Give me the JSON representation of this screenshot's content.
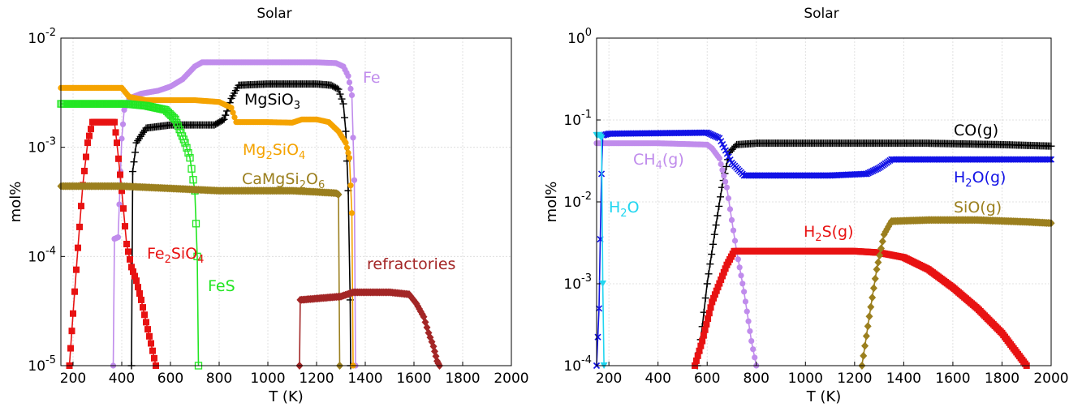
{
  "chart_data": [
    {
      "type": "scatter",
      "title": "Solar",
      "xlabel": "T (K)",
      "ylabel": "mol%",
      "xlim": [
        150,
        2000
      ],
      "ylim": [
        1e-05,
        0.01
      ],
      "log_y": true,
      "grid": true,
      "xticks": [
        "200",
        "400",
        "600",
        "800",
        "1000",
        "1200",
        "1400",
        "1600",
        "1800",
        "2000"
      ],
      "yticks": [
        {
          "base": "10",
          "exp": "-2"
        },
        {
          "base": "10",
          "exp": "-3"
        },
        {
          "base": "10",
          "exp": "-4"
        },
        {
          "base": "10",
          "exp": "-5"
        }
      ],
      "series": [
        {
          "name": "Fe",
          "label": {
            "parts": [
              [
                "Fe",
                ""
              ]
            ]
          },
          "color": "#c08cec",
          "marker": "circle",
          "points": [
            [
              365,
              1e-05
            ],
            [
              370,
              0.000145
            ],
            [
              385,
              0.00015
            ],
            [
              400,
              0.0012
            ],
            [
              410,
              0.0022
            ],
            [
              430,
              0.0028
            ],
            [
              480,
              0.0031
            ],
            [
              550,
              0.0033
            ],
            [
              600,
              0.0036
            ],
            [
              650,
              0.0042
            ],
            [
              700,
              0.0055
            ],
            [
              730,
              0.006
            ],
            [
              800,
              0.006
            ],
            [
              1000,
              0.006
            ],
            [
              1200,
              0.006
            ],
            [
              1280,
              0.0059
            ],
            [
              1310,
              0.0055
            ],
            [
              1330,
              0.0045
            ],
            [
              1345,
              0.003
            ],
            [
              1355,
              0.0005
            ],
            [
              1360,
              1e-05
            ]
          ]
        },
        {
          "name": "MgSiO3",
          "label": {
            "parts": [
              [
                "MgSiO",
                ""
              ],
              [
                "3",
                "sub"
              ]
            ]
          },
          "color": "#000000",
          "marker": "plus",
          "points": [
            [
              440,
              1e-05
            ],
            [
              445,
              0.0006
            ],
            [
              460,
              0.0011
            ],
            [
              500,
              0.0015
            ],
            [
              600,
              0.0016
            ],
            [
              700,
              0.0016
            ],
            [
              780,
              0.0016
            ],
            [
              820,
              0.0018
            ],
            [
              850,
              0.0028
            ],
            [
              880,
              0.0037
            ],
            [
              1000,
              0.0038
            ],
            [
              1100,
              0.0038
            ],
            [
              1200,
              0.0038
            ],
            [
              1260,
              0.0037
            ],
            [
              1290,
              0.0034
            ],
            [
              1310,
              0.0025
            ],
            [
              1320,
              0.0014
            ],
            [
              1330,
              0.0004
            ],
            [
              1338,
              4e-05
            ],
            [
              1340,
              1e-05
            ]
          ]
        },
        {
          "name": "Mg2SiO4",
          "label": {
            "parts": [
              [
                "Mg",
                ""
              ],
              [
                "2",
                "sub"
              ],
              [
                "SiO",
                ""
              ],
              [
                "4",
                "sub"
              ]
            ]
          },
          "color": "#f5a300",
          "marker": "circle",
          "points": [
            [
              150,
              0.0035
            ],
            [
              300,
              0.0035
            ],
            [
              400,
              0.0035
            ],
            [
              430,
              0.0029
            ],
            [
              500,
              0.0027
            ],
            [
              600,
              0.0027
            ],
            [
              700,
              0.0027
            ],
            [
              800,
              0.0026
            ],
            [
              850,
              0.0023
            ],
            [
              870,
              0.0017
            ],
            [
              900,
              0.0017
            ],
            [
              1000,
              0.0017
            ],
            [
              1100,
              0.00168
            ],
            [
              1140,
              0.0018
            ],
            [
              1200,
              0.0018
            ],
            [
              1250,
              0.0017
            ],
            [
              1290,
              0.0014
            ],
            [
              1320,
              0.0011
            ],
            [
              1335,
              0.0008
            ],
            [
              1345,
              0.00025
            ],
            [
              1350,
              1e-05
            ]
          ]
        },
        {
          "name": "FeS",
          "label": {
            "parts": [
              [
                "FeS",
                ""
              ]
            ]
          },
          "color": "#22e622",
          "marker": "square-open",
          "points": [
            [
              150,
              0.0025
            ],
            [
              300,
              0.0025
            ],
            [
              420,
              0.0025
            ],
            [
              500,
              0.0024
            ],
            [
              580,
              0.0022
            ],
            [
              620,
              0.0018
            ],
            [
              660,
              0.0011
            ],
            [
              680,
              0.0008
            ],
            [
              700,
              0.0004
            ],
            [
              705,
              0.0002
            ],
            [
              710,
              0.0001
            ],
            [
              715,
              1e-05
            ]
          ]
        },
        {
          "name": "Fe2SiO4",
          "label": {
            "parts": [
              [
                "Fe",
                ""
              ],
              [
                "2",
                "sub"
              ],
              [
                "SiO",
                ""
              ],
              [
                "4",
                "sub"
              ]
            ]
          },
          "color": "#e81212",
          "marker": "square",
          "points": [
            [
              185,
              1e-05
            ],
            [
              200,
              3e-05
            ],
            [
              220,
              0.00012
            ],
            [
              240,
              0.00045
            ],
            [
              260,
              0.0011
            ],
            [
              280,
              0.0017
            ],
            [
              350,
              0.0017
            ],
            [
              370,
              0.0017
            ],
            [
              380,
              0.0011
            ],
            [
              400,
              0.0004
            ],
            [
              420,
              0.00013
            ],
            [
              440,
              8e-05
            ],
            [
              460,
              6e-05
            ],
            [
              480,
              4e-05
            ],
            [
              500,
              2.5e-05
            ],
            [
              520,
              1.6e-05
            ],
            [
              540,
              1e-05
            ]
          ]
        },
        {
          "name": "CaMgSi2O6",
          "label": {
            "parts": [
              [
                "CaMgSi",
                ""
              ],
              [
                "2",
                "sub"
              ],
              [
                "O",
                ""
              ],
              [
                "6",
                "sub"
              ]
            ]
          },
          "color": "#9b7f1e",
          "marker": "diamond",
          "points": [
            [
              150,
              0.00044
            ],
            [
              400,
              0.00044
            ],
            [
              600,
              0.00042
            ],
            [
              800,
              0.0004
            ],
            [
              1000,
              0.0004
            ],
            [
              1100,
              0.0004
            ],
            [
              1200,
              0.00039
            ],
            [
              1280,
              0.00038
            ],
            [
              1290,
              0.00037
            ],
            [
              1295,
              1e-05
            ]
          ]
        },
        {
          "name": "refractories",
          "label": {
            "parts": [
              [
                "refractories",
                ""
              ]
            ]
          },
          "color": "#a32626",
          "marker": "diamond",
          "points": [
            [
              1130,
              1e-05
            ],
            [
              1133,
              4e-05
            ],
            [
              1300,
              4.3e-05
            ],
            [
              1350,
              4.7e-05
            ],
            [
              1500,
              4.7e-05
            ],
            [
              1580,
              4.5e-05
            ],
            [
              1610,
              3.7e-05
            ],
            [
              1640,
              2.8e-05
            ],
            [
              1660,
              2e-05
            ],
            [
              1680,
              1.5e-05
            ],
            [
              1695,
              1.1e-05
            ],
            [
              1705,
              1e-05
            ]
          ]
        }
      ]
    },
    {
      "type": "scatter",
      "title": "Solar",
      "xlabel": "T (K)",
      "ylabel": "mol%",
      "xlim": [
        150,
        2000
      ],
      "ylim": [
        0.0001,
        1
      ],
      "log_y": true,
      "grid": true,
      "xticks": [
        "200",
        "400",
        "600",
        "800",
        "1000",
        "1200",
        "1400",
        "1600",
        "1800",
        "2000"
      ],
      "yticks": [
        {
          "base": "10",
          "exp": "0"
        },
        {
          "base": "10",
          "exp": "-1"
        },
        {
          "base": "10",
          "exp": "-2"
        },
        {
          "base": "10",
          "exp": "-3"
        },
        {
          "base": "10",
          "exp": "-4"
        }
      ],
      "series": [
        {
          "name": "CO(g)",
          "label": {
            "parts": [
              [
                "CO(g)",
                ""
              ]
            ]
          },
          "color": "#000000",
          "marker": "plus",
          "points": [
            [
              560,
              0.0001
            ],
            [
              580,
              0.0003
            ],
            [
              600,
              0.001
            ],
            [
              630,
              0.004
            ],
            [
              660,
              0.015
            ],
            [
              690,
              0.04
            ],
            [
              720,
              0.05
            ],
            [
              800,
              0.052
            ],
            [
              1000,
              0.052
            ],
            [
              1200,
              0.052
            ],
            [
              1500,
              0.052
            ],
            [
              1800,
              0.05
            ],
            [
              2000,
              0.048
            ]
          ]
        },
        {
          "name": "CH4(g)",
          "label": {
            "parts": [
              [
                "CH",
                ""
              ],
              [
                "4",
                "sub"
              ],
              [
                "(g)",
                ""
              ]
            ]
          },
          "color": "#c08cec",
          "marker": "circle",
          "points": [
            [
              150,
              0.052
            ],
            [
              200,
              0.052
            ],
            [
              400,
              0.052
            ],
            [
              600,
              0.05
            ],
            [
              620,
              0.045
            ],
            [
              650,
              0.034
            ],
            [
              680,
              0.015
            ],
            [
              700,
              0.006
            ],
            [
              720,
              0.0025
            ],
            [
              750,
              0.0008
            ],
            [
              780,
              0.0002
            ],
            [
              800,
              0.0001
            ]
          ]
        },
        {
          "name": "H2O(g)",
          "label": {
            "parts": [
              [
                "H",
                ""
              ],
              [
                "2",
                "sub"
              ],
              [
                "O(g)",
                ""
              ]
            ]
          },
          "color": "#1212e6",
          "marker": "x",
          "points": [
            [
              150,
              0.0001
            ],
            [
              160,
              0.0005
            ],
            [
              165,
              0.0035
            ],
            [
              170,
              0.022
            ],
            [
              175,
              0.065
            ],
            [
              200,
              0.068
            ],
            [
              400,
              0.069
            ],
            [
              600,
              0.07
            ],
            [
              650,
              0.06
            ],
            [
              700,
              0.03
            ],
            [
              750,
              0.021
            ],
            [
              900,
              0.021
            ],
            [
              1100,
              0.021
            ],
            [
              1250,
              0.022
            ],
            [
              1300,
              0.026
            ],
            [
              1350,
              0.033
            ],
            [
              1500,
              0.033
            ],
            [
              1800,
              0.033
            ],
            [
              2000,
              0.033
            ]
          ]
        },
        {
          "name": "H2O",
          "label": {
            "parts": [
              [
                "H",
                ""
              ],
              [
                "2",
                "sub"
              ],
              [
                "O",
                ""
              ]
            ]
          },
          "color": "#22d6f0",
          "marker": "triangle",
          "points": [
            [
              150,
              0.065
            ],
            [
              160,
              0.065
            ],
            [
              170,
              0.06
            ],
            [
              175,
              0.001
            ],
            [
              180,
              0.0001
            ]
          ]
        },
        {
          "name": "H2S(g)",
          "label": {
            "parts": [
              [
                "H",
                ""
              ],
              [
                "2",
                "sub"
              ],
              [
                "S(g)",
                ""
              ]
            ]
          },
          "color": "#e81212",
          "marker": "square",
          "points": [
            [
              550,
              0.0001
            ],
            [
              580,
              0.0002
            ],
            [
              620,
              0.0006
            ],
            [
              680,
              0.0017
            ],
            [
              710,
              0.0025
            ],
            [
              800,
              0.0025
            ],
            [
              1000,
              0.0025
            ],
            [
              1200,
              0.0025
            ],
            [
              1300,
              0.0024
            ],
            [
              1400,
              0.0021
            ],
            [
              1500,
              0.0015
            ],
            [
              1600,
              0.0009
            ],
            [
              1700,
              0.0005
            ],
            [
              1800,
              0.00025
            ],
            [
              1900,
              0.0001
            ]
          ]
        },
        {
          "name": "SiO(g)",
          "label": {
            "parts": [
              [
                "SiO(g)",
                ""
              ]
            ]
          },
          "color": "#9b7f1e",
          "marker": "diamond",
          "points": [
            [
              1230,
              0.0001
            ],
            [
              1260,
              0.0004
            ],
            [
              1290,
              0.0015
            ],
            [
              1320,
              0.004
            ],
            [
              1350,
              0.0058
            ],
            [
              1500,
              0.006
            ],
            [
              1700,
              0.006
            ],
            [
              1900,
              0.0057
            ],
            [
              2000,
              0.0055
            ]
          ]
        }
      ]
    }
  ]
}
